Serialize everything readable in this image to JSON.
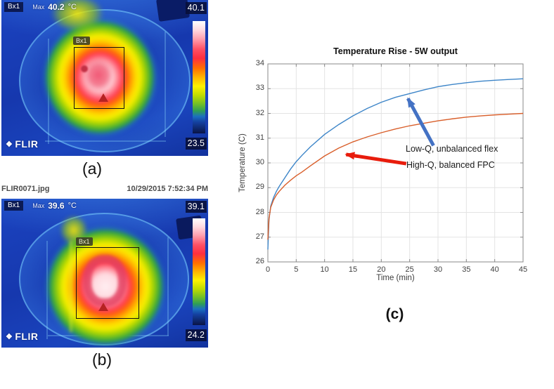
{
  "figure": {
    "panel_a_label": "(a)",
    "panel_b_label": "(b)",
    "panel_c_label": "(c)"
  },
  "thermal_a": {
    "box_label": "Bx1",
    "max_label": "Max",
    "max_value": "40.2",
    "unit": "°C",
    "scale_max": "40.1",
    "scale_min": "23.5",
    "roi_tag": "Bx1",
    "logo": "FLIR"
  },
  "file_info": {
    "filename": "FLIR0071.jpg",
    "timestamp": "10/29/2015 7:52:34 PM"
  },
  "thermal_b": {
    "box_label": "Bx1",
    "max_label": "Max",
    "max_value": "39.6",
    "unit": "°C",
    "scale_max": "39.1",
    "scale_min": "24.2",
    "roi_tag": "Bx1",
    "logo": "FLIR"
  },
  "chart_data": {
    "type": "line",
    "title": "Temperature Rise - 5W output",
    "xlabel": "Time (min)",
    "ylabel": "Temperature (C)",
    "xlim": [
      0,
      45
    ],
    "ylim": [
      26,
      34
    ],
    "xticks": [
      0,
      5,
      10,
      15,
      20,
      25,
      30,
      35,
      40,
      45
    ],
    "yticks": [
      26,
      27,
      28,
      29,
      30,
      31,
      32,
      33,
      34
    ],
    "grid": true,
    "legend_position": "annotated-arrows",
    "series": [
      {
        "name": "Low-Q, unbalanced flex",
        "color": "#3d85c8",
        "x": [
          0,
          0.2,
          0.5,
          1,
          1.5,
          2,
          3,
          4,
          5,
          6,
          7.5,
          10,
          12.5,
          15,
          17.5,
          20,
          22.5,
          25,
          27.5,
          30,
          32.5,
          35,
          37.5,
          40,
          42.5,
          45
        ],
        "y": [
          26.5,
          27.7,
          28.25,
          28.6,
          28.85,
          29.05,
          29.4,
          29.75,
          30.05,
          30.3,
          30.65,
          31.15,
          31.55,
          31.9,
          32.2,
          32.45,
          32.65,
          32.8,
          32.95,
          33.08,
          33.17,
          33.24,
          33.3,
          33.34,
          33.37,
          33.4
        ]
      },
      {
        "name": "High-Q, balanced FPC",
        "color": "#d95f2b",
        "x": [
          0,
          0.2,
          0.5,
          1,
          1.5,
          2,
          3,
          4,
          5,
          6,
          7.5,
          10,
          12.5,
          15,
          17.5,
          20,
          22.5,
          25,
          27.5,
          30,
          32.5,
          35,
          37.5,
          40,
          42.5,
          45
        ],
        "y": [
          26.9,
          27.75,
          28.2,
          28.5,
          28.7,
          28.85,
          29.1,
          29.3,
          29.48,
          29.63,
          29.88,
          30.28,
          30.6,
          30.85,
          31.05,
          31.22,
          31.37,
          31.5,
          31.6,
          31.7,
          31.78,
          31.85,
          31.9,
          31.94,
          31.97,
          32.0
        ]
      }
    ],
    "annotations": [
      {
        "text": "Low-Q, unbalanced flex",
        "arrow_color": "#4472c4",
        "tip": [
          24.7,
          32.6
        ],
        "tail": [
          29.2,
          30.7
        ]
      },
      {
        "text": "High-Q, balanced FPC",
        "arrow_color": "#e81c0c",
        "tip": [
          13.8,
          30.34
        ],
        "tail": [
          24.4,
          29.97
        ]
      }
    ]
  }
}
